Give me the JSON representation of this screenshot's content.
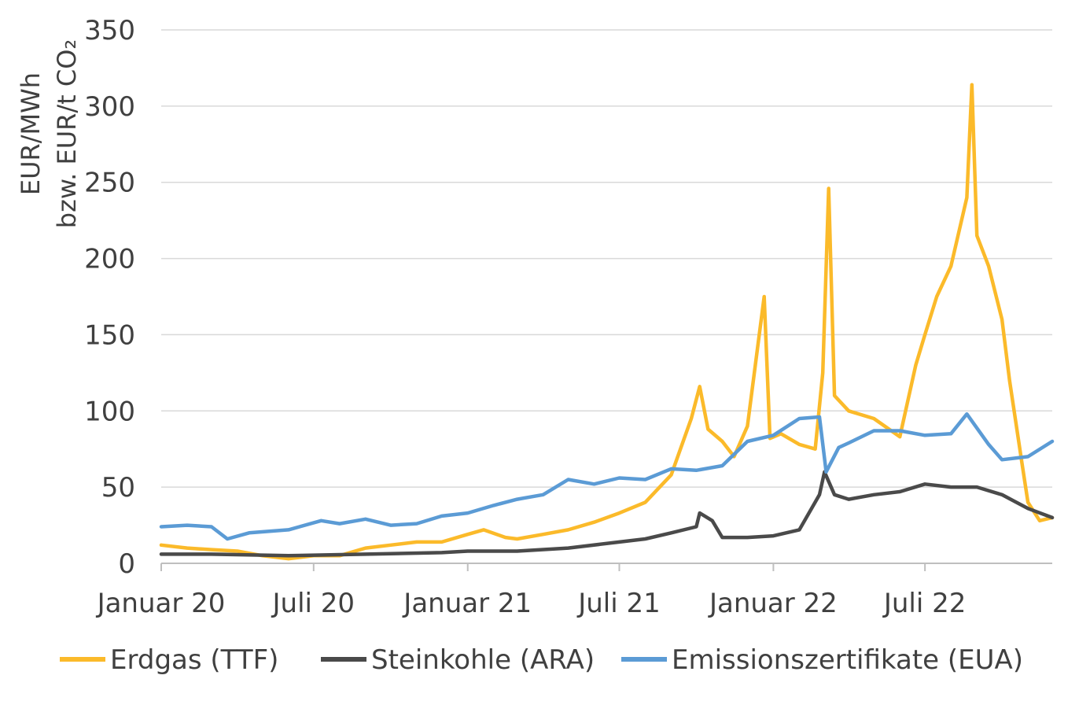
{
  "chart_data": {
    "type": "line",
    "title": "",
    "xlabel": "",
    "ylabel": "EUR/MWh\nbzw. EUR/t CO₂",
    "ylabel_lines": [
      "EUR/MWh",
      "bzw. EUR/t CO₂"
    ],
    "ylim": [
      0,
      350
    ],
    "yticks": [
      0,
      50,
      100,
      150,
      200,
      250,
      300,
      350
    ],
    "x_range": [
      "2020-01-01",
      "2022-11-30"
    ],
    "xticks": [
      {
        "date": "2020-01-01",
        "label": "Januar 20"
      },
      {
        "date": "2020-07-01",
        "label": "Juli 20"
      },
      {
        "date": "2021-01-01",
        "label": "Januar 21"
      },
      {
        "date": "2021-07-01",
        "label": "Juli 21"
      },
      {
        "date": "2022-01-01",
        "label": "Januar 22"
      },
      {
        "date": "2022-07-01",
        "label": "Juli 22"
      }
    ],
    "grid": "horizontal",
    "legend_position": "bottom",
    "series": [
      {
        "name": "Erdgas (TTF)",
        "color": "#FBBA2A",
        "points": [
          [
            "2020-01-01",
            12
          ],
          [
            "2020-02-01",
            10
          ],
          [
            "2020-03-01",
            9
          ],
          [
            "2020-04-01",
            8
          ],
          [
            "2020-05-01",
            5
          ],
          [
            "2020-06-01",
            3
          ],
          [
            "2020-07-01",
            5
          ],
          [
            "2020-08-01",
            5
          ],
          [
            "2020-09-01",
            10
          ],
          [
            "2020-10-01",
            12
          ],
          [
            "2020-11-01",
            14
          ],
          [
            "2020-12-01",
            14
          ],
          [
            "2021-01-01",
            19
          ],
          [
            "2021-01-20",
            22
          ],
          [
            "2021-02-15",
            17
          ],
          [
            "2021-03-01",
            16
          ],
          [
            "2021-04-01",
            19
          ],
          [
            "2021-05-01",
            22
          ],
          [
            "2021-06-01",
            27
          ],
          [
            "2021-07-01",
            33
          ],
          [
            "2021-08-01",
            40
          ],
          [
            "2021-09-01",
            58
          ],
          [
            "2021-09-25",
            95
          ],
          [
            "2021-10-05",
            116
          ],
          [
            "2021-10-15",
            88
          ],
          [
            "2021-11-01",
            80
          ],
          [
            "2021-11-15",
            70
          ],
          [
            "2021-12-01",
            90
          ],
          [
            "2021-12-21",
            175
          ],
          [
            "2021-12-28",
            82
          ],
          [
            "2022-01-10",
            85
          ],
          [
            "2022-02-01",
            78
          ],
          [
            "2022-02-20",
            75
          ],
          [
            "2022-03-01",
            125
          ],
          [
            "2022-03-08",
            246
          ],
          [
            "2022-03-15",
            110
          ],
          [
            "2022-04-01",
            100
          ],
          [
            "2022-05-01",
            95
          ],
          [
            "2022-06-01",
            83
          ],
          [
            "2022-06-20",
            130
          ],
          [
            "2022-07-01",
            150
          ],
          [
            "2022-07-15",
            175
          ],
          [
            "2022-08-01",
            195
          ],
          [
            "2022-08-20",
            240
          ],
          [
            "2022-08-26",
            314
          ],
          [
            "2022-09-01",
            215
          ],
          [
            "2022-09-15",
            195
          ],
          [
            "2022-10-01",
            160
          ],
          [
            "2022-10-10",
            120
          ],
          [
            "2022-10-25",
            65
          ],
          [
            "2022-11-01",
            40
          ],
          [
            "2022-11-15",
            28
          ],
          [
            "2022-11-30",
            30
          ]
        ]
      },
      {
        "name": "Steinkohle (ARA)",
        "color": "#4A4A4A",
        "points": [
          [
            "2020-01-01",
            6
          ],
          [
            "2020-03-01",
            6
          ],
          [
            "2020-06-01",
            5
          ],
          [
            "2020-09-01",
            6
          ],
          [
            "2020-12-01",
            7
          ],
          [
            "2021-01-01",
            8
          ],
          [
            "2021-03-01",
            8
          ],
          [
            "2021-05-01",
            10
          ],
          [
            "2021-07-01",
            14
          ],
          [
            "2021-08-01",
            16
          ],
          [
            "2021-09-01",
            20
          ],
          [
            "2021-10-01",
            24
          ],
          [
            "2021-10-05",
            33
          ],
          [
            "2021-10-20",
            28
          ],
          [
            "2021-11-01",
            17
          ],
          [
            "2021-12-01",
            17
          ],
          [
            "2022-01-01",
            18
          ],
          [
            "2022-02-01",
            22
          ],
          [
            "2022-02-25",
            45
          ],
          [
            "2022-03-03",
            60
          ],
          [
            "2022-03-15",
            45
          ],
          [
            "2022-04-01",
            42
          ],
          [
            "2022-05-01",
            45
          ],
          [
            "2022-06-01",
            47
          ],
          [
            "2022-07-01",
            52
          ],
          [
            "2022-08-01",
            50
          ],
          [
            "2022-09-01",
            50
          ],
          [
            "2022-10-01",
            45
          ],
          [
            "2022-11-01",
            36
          ],
          [
            "2022-11-30",
            30
          ]
        ]
      },
      {
        "name": "Emissionszertifikate (EUA)",
        "color": "#5B9BD5",
        "points": [
          [
            "2020-01-01",
            24
          ],
          [
            "2020-02-01",
            25
          ],
          [
            "2020-03-01",
            24
          ],
          [
            "2020-03-20",
            16
          ],
          [
            "2020-04-15",
            20
          ],
          [
            "2020-06-01",
            22
          ],
          [
            "2020-07-10",
            28
          ],
          [
            "2020-08-01",
            26
          ],
          [
            "2020-09-01",
            29
          ],
          [
            "2020-10-01",
            25
          ],
          [
            "2020-11-01",
            26
          ],
          [
            "2020-12-01",
            31
          ],
          [
            "2021-01-01",
            33
          ],
          [
            "2021-02-01",
            38
          ],
          [
            "2021-03-01",
            42
          ],
          [
            "2021-04-01",
            45
          ],
          [
            "2021-05-01",
            55
          ],
          [
            "2021-06-01",
            52
          ],
          [
            "2021-07-01",
            56
          ],
          [
            "2021-08-01",
            55
          ],
          [
            "2021-09-01",
            62
          ],
          [
            "2021-10-01",
            61
          ],
          [
            "2021-11-01",
            64
          ],
          [
            "2021-12-01",
            80
          ],
          [
            "2022-01-01",
            84
          ],
          [
            "2022-02-01",
            95
          ],
          [
            "2022-02-25",
            96
          ],
          [
            "2022-03-05",
            60
          ],
          [
            "2022-03-20",
            76
          ],
          [
            "2022-04-01",
            79
          ],
          [
            "2022-05-01",
            87
          ],
          [
            "2022-06-01",
            87
          ],
          [
            "2022-07-01",
            84
          ],
          [
            "2022-08-01",
            85
          ],
          [
            "2022-08-20",
            98
          ],
          [
            "2022-09-15",
            78
          ],
          [
            "2022-10-01",
            68
          ],
          [
            "2022-11-01",
            70
          ],
          [
            "2022-11-30",
            80
          ]
        ]
      }
    ]
  }
}
